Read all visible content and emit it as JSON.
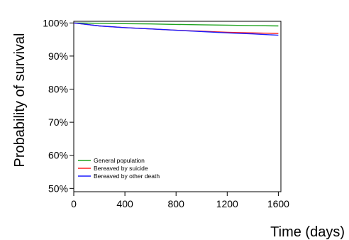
{
  "chart_data": {
    "type": "line",
    "xlabel": "Time (days)",
    "ylabel": "Probability of survival",
    "xlim": [
      0,
      1620
    ],
    "ylim": [
      49,
      100.5
    ],
    "xticks": [
      0,
      400,
      800,
      1200,
      1600
    ],
    "xtick_labels": [
      "0",
      "400",
      "800",
      "1200",
      "1600"
    ],
    "yticks": [
      50,
      60,
      70,
      80,
      90,
      100
    ],
    "ytick_labels": [
      "50%",
      "60%",
      "70%",
      "80%",
      "90%",
      "100%"
    ],
    "grid": false,
    "legend_position": "bottom-left",
    "series": [
      {
        "name": "General population",
        "color": "#1fa31f",
        "x": [
          0,
          200,
          400,
          600,
          800,
          1000,
          1200,
          1400,
          1600
        ],
        "y": [
          100,
          99.9,
          99.8,
          99.7,
          99.55,
          99.45,
          99.35,
          99.2,
          99.1
        ]
      },
      {
        "name": "Bereaved by suicide",
        "color": "#ff2020",
        "x": [
          0,
          200,
          400,
          600,
          800,
          1000,
          1200,
          1400,
          1600
        ],
        "y": [
          100,
          99.1,
          98.6,
          98.2,
          97.8,
          97.5,
          97.2,
          97.0,
          96.8
        ]
      },
      {
        "name": "Bereaved by other death",
        "color": "#1a1aff",
        "x": [
          0,
          200,
          400,
          600,
          800,
          1000,
          1200,
          1400,
          1600
        ],
        "y": [
          100,
          99.1,
          98.6,
          98.2,
          97.8,
          97.4,
          97.0,
          96.7,
          96.3
        ]
      }
    ]
  }
}
